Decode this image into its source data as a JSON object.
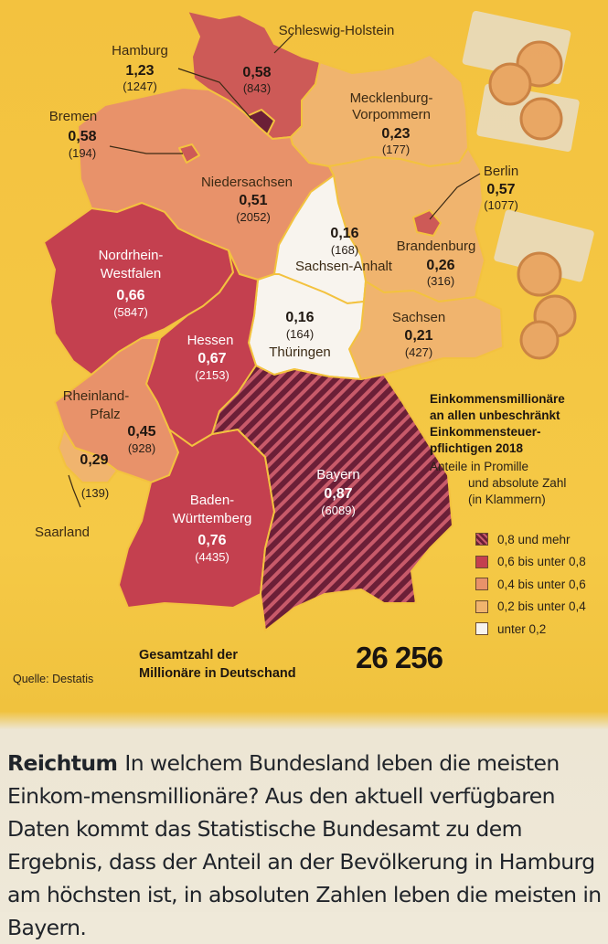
{
  "states": [
    {
      "id": "schleswig-holstein",
      "name": "Schleswig-Holstein",
      "value": "0,58",
      "abs": "(843)",
      "color": "#cd5a57"
    },
    {
      "id": "hamburg",
      "name": "Hamburg",
      "value": "1,23",
      "abs": "(1247)",
      "color": "#6b1f37"
    },
    {
      "id": "bremen",
      "name": "Bremen",
      "value": "0,58",
      "abs": "(194)",
      "color": "#cd5a57"
    },
    {
      "id": "mecklenburg-vorpommern",
      "name_line1": "Mecklenburg-",
      "name_line2": "Vorpommern",
      "value": "0,23",
      "abs": "(177)",
      "color": "#f0b46e"
    },
    {
      "id": "berlin",
      "name": "Berlin",
      "value": "0,57",
      "abs": "(1077)",
      "color": "#cd5a57"
    },
    {
      "id": "niedersachsen",
      "name": "Niedersachsen",
      "value": "0,51",
      "abs": "(2052)",
      "color": "#e8926a"
    },
    {
      "id": "sachsen-anhalt",
      "name": "Sachsen-Anhalt",
      "value": "0,16",
      "abs": "(168)",
      "color": "#f8f4ee"
    },
    {
      "id": "brandenburg",
      "name": "Brandenburg",
      "value": "0,26",
      "abs": "(316)",
      "color": "#f0b46e"
    },
    {
      "id": "nordrhein-westfalen",
      "name_line1": "Nordrhein-",
      "name_line2": "Westfalen",
      "value": "0,66",
      "abs": "(5847)",
      "color": "#c4404f"
    },
    {
      "id": "thueringen",
      "name": "Thüringen",
      "value": "0,16",
      "abs": "(164)",
      "color": "#f8f4ee"
    },
    {
      "id": "sachsen",
      "name": "Sachsen",
      "value": "0,21",
      "abs": "(427)",
      "color": "#f0b46e"
    },
    {
      "id": "hessen",
      "name": "Hessen",
      "value": "0,67",
      "abs": "(2153)",
      "color": "#c4404f"
    },
    {
      "id": "rheinland-pfalz",
      "name_line1": "Rheinland-",
      "name_line2": "Pfalz",
      "value": "0,45",
      "abs": "(928)",
      "color": "#e8926a"
    },
    {
      "id": "saarland",
      "name": "Saarland",
      "value": "0,29",
      "abs": "(139)",
      "color": "#f0b46e"
    },
    {
      "id": "baden-wuerttemberg",
      "name_line1": "Baden-",
      "name_line2": "Württemberg",
      "value": "0,76",
      "abs": "(4435)",
      "color": "#c4404f"
    },
    {
      "id": "bayern",
      "name": "Bayern",
      "value": "0,87",
      "abs": "(6089)",
      "color": "#6b1f37"
    }
  ],
  "legend": {
    "title": [
      "Einkommensmillionäre",
      "an allen unbeschränkt",
      "Einkommensteuer-",
      "pflichtigen 2018"
    ],
    "subtitle": [
      "Anteile in Promille",
      "und absolute Zahl",
      "(in Klammern)"
    ],
    "items": [
      {
        "label": "0,8 und mehr",
        "color": "#6b1f37"
      },
      {
        "label": "0,6 bis unter 0,8",
        "color": "#c4404f"
      },
      {
        "label": "0,4 bis unter 0,6",
        "color": "#e8926a"
      },
      {
        "label": "0,2 bis unter 0,4",
        "color": "#f0b46e"
      },
      {
        "label": "unter 0,2",
        "color": "#f8f4ee"
      }
    ]
  },
  "total": {
    "label_line1": "Gesamtzahl der",
    "label_line2": "Millionäre in Deutschand",
    "value": "26 256"
  },
  "source": "Quelle: Destatis",
  "article": {
    "kicker": "Reichtum",
    "text": "In welchem Bundesland leben die meisten Einkom-mensmillionäre? Aus den aktuell verfügbaren Daten kommt das Statistische Bundesamt zu dem Ergebnis, dass der Anteil an der Bevölkerung in Hamburg am höchsten ist, in absoluten Zahlen leben die meisten in Bayern."
  }
}
